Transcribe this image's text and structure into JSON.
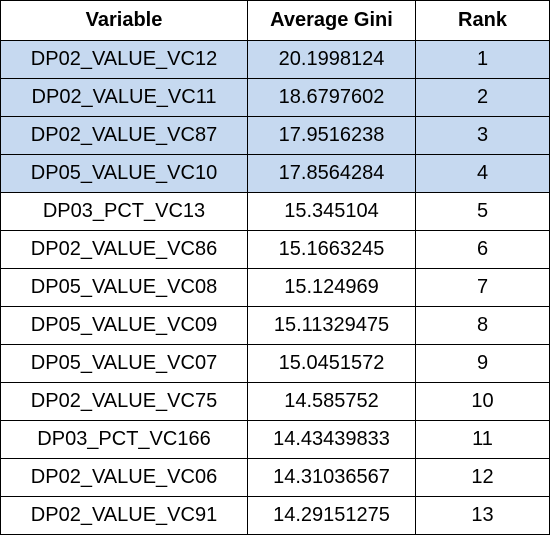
{
  "table": {
    "headers": [
      "Variable",
      "Average Gini",
      "Rank"
    ],
    "highlight_color": "#c6d9f0",
    "rows": [
      {
        "variable": "DP02_VALUE_VC12",
        "gini": "20.1998124",
        "rank": "1",
        "highlighted": true
      },
      {
        "variable": "DP02_VALUE_VC11",
        "gini": "18.6797602",
        "rank": "2",
        "highlighted": true
      },
      {
        "variable": "DP02_VALUE_VC87",
        "gini": "17.9516238",
        "rank": "3",
        "highlighted": true
      },
      {
        "variable": "DP05_VALUE_VC10",
        "gini": "17.8564284",
        "rank": "4",
        "highlighted": true
      },
      {
        "variable": "DP03_PCT_VC13",
        "gini": "15.345104",
        "rank": "5",
        "highlighted": false
      },
      {
        "variable": "DP02_VALUE_VC86",
        "gini": "15.1663245",
        "rank": "6",
        "highlighted": false
      },
      {
        "variable": "DP05_VALUE_VC08",
        "gini": "15.124969",
        "rank": "7",
        "highlighted": false
      },
      {
        "variable": "DP05_VALUE_VC09",
        "gini": "15.11329475",
        "rank": "8",
        "highlighted": false
      },
      {
        "variable": "DP05_VALUE_VC07",
        "gini": "15.0451572",
        "rank": "9",
        "highlighted": false
      },
      {
        "variable": "DP02_VALUE_VC75",
        "gini": "14.585752",
        "rank": "10",
        "highlighted": false
      },
      {
        "variable": "DP03_PCT_VC166",
        "gini": "14.43439833",
        "rank": "11",
        "highlighted": false
      },
      {
        "variable": "DP02_VALUE_VC06",
        "gini": "14.31036567",
        "rank": "12",
        "highlighted": false
      },
      {
        "variable": "DP02_VALUE_VC91",
        "gini": "14.29151275",
        "rank": "13",
        "highlighted": false
      }
    ]
  }
}
